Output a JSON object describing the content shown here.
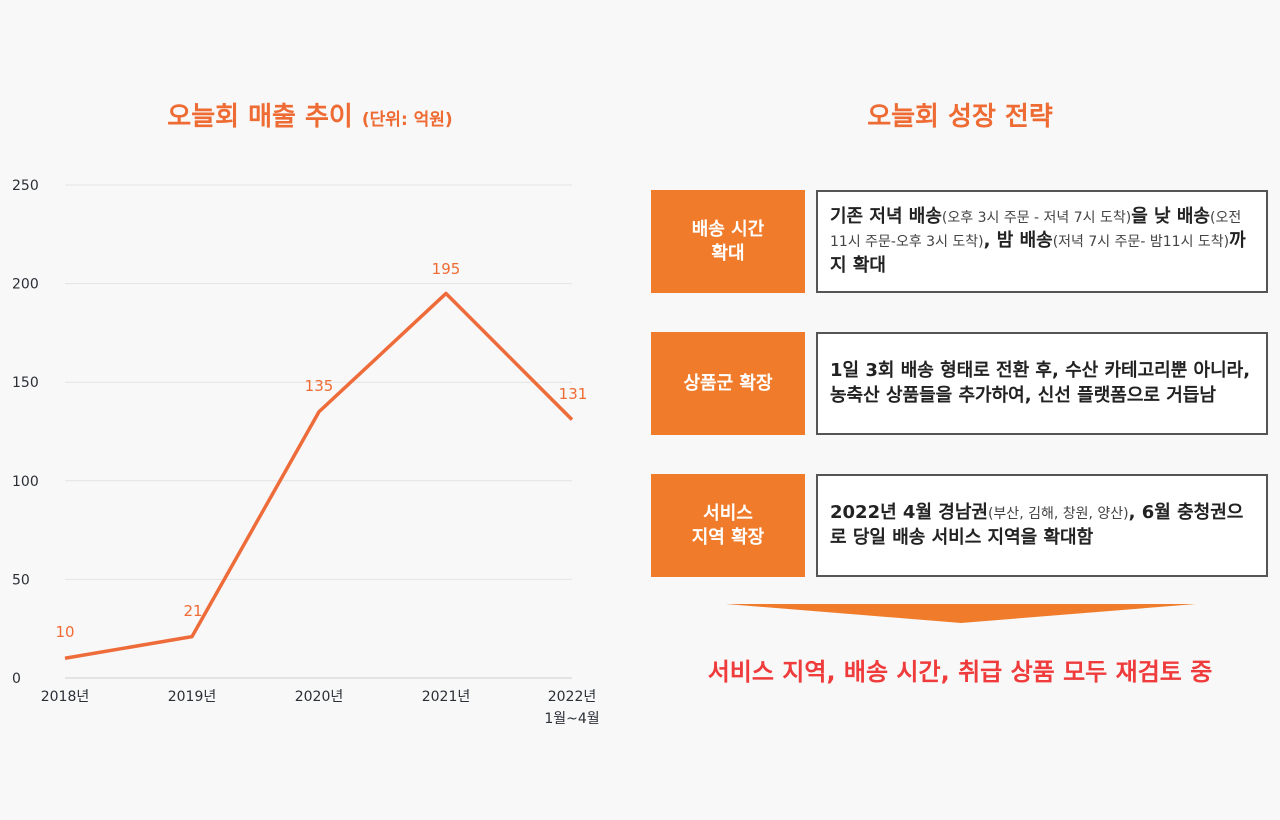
{
  "chart": {
    "title": "오늘회 매출 추이",
    "unit": "(단위: 억원)"
  },
  "chart_data": {
    "type": "line",
    "categories": [
      "2018년",
      "2019년",
      "2020년",
      "2021년",
      "2022년"
    ],
    "category_sublabels": [
      "",
      "",
      "",
      "",
      "1월~4월"
    ],
    "series": [
      {
        "values": [
          10,
          21,
          135,
          195,
          131
        ]
      }
    ],
    "data_labels": [
      "10",
      "21",
      "135",
      "195",
      "131"
    ],
    "ylim": [
      0,
      250
    ],
    "yticks": [
      "0",
      "50",
      "100",
      "150",
      "200",
      "250"
    ],
    "grid": true,
    "line_color": "#ee6b3a"
  },
  "strategy": {
    "title": "오늘회 성장 전략",
    "rows": [
      {
        "label": "배송 시간\n확대",
        "desc": [
          {
            "t": "기존 저녁 배송",
            "s": false
          },
          {
            "t": "(오후 3시 주문 - 저녁 7시 도착)",
            "s": true
          },
          {
            "t": "을 낮 배송",
            "s": false
          },
          {
            "t": "(오전 11시 주문-오후 3시 도착)",
            "s": true
          },
          {
            "t": ", 밤 배송",
            "s": false
          },
          {
            "t": "(저녁 7시 주문- 밤11시 도착)",
            "s": true
          },
          {
            "t": "까지 확대",
            "s": false
          }
        ]
      },
      {
        "label": "상품군 확장",
        "desc": [
          {
            "t": "1일 3회 배송 형태로 전환 후, 수산 카테고리뿐 아니라, 농축산 상품들을 추가하여, 신선 플랫폼으로 거듭남",
            "s": false
          }
        ]
      },
      {
        "label": "서비스\n지역 확장",
        "desc": [
          {
            "t": "2022년 4월 경남권",
            "s": false
          },
          {
            "t": "(부산, 김해, 창원, 양산)",
            "s": true
          },
          {
            "t": ", 6월 충청권으로 당일 배송 서비스 지역을 확대함",
            "s": false
          }
        ]
      }
    ],
    "conclusion": "서비스 지역, 배송 시간, 취급 상품 모두 재검토 중",
    "colors": {
      "label_bg": "#f07c2b",
      "accent": "#ee6b33",
      "conclusion": "#ef3b3b"
    }
  }
}
